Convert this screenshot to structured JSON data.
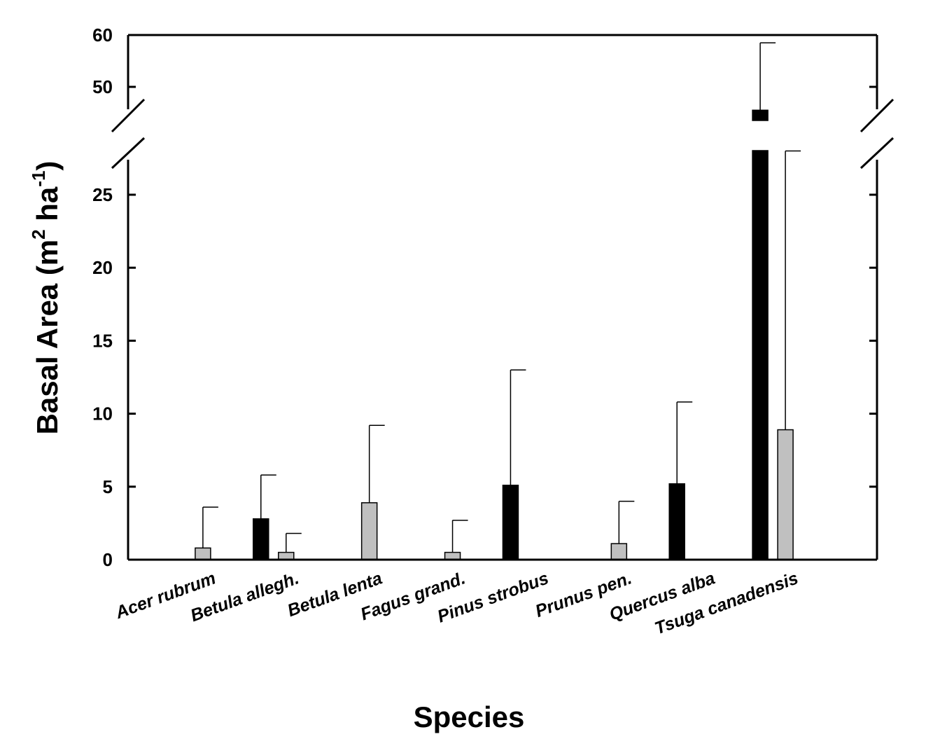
{
  "chart_data": {
    "type": "bar",
    "xlabel": "Species",
    "ylabel": {
      "main": "Basal Area (m",
      "sup1": "2",
      "mid": " ha",
      "sup2": "-1",
      "end": ")"
    },
    "axis_break": {
      "lower_max": 28,
      "upper_min": 43,
      "upper_max": 60
    },
    "y_ticks_lower": [
      0,
      5,
      10,
      15,
      20,
      25
    ],
    "y_ticks_upper": [
      50,
      60
    ],
    "categories": [
      "Acer rubrum",
      "Betula allegh.",
      "Betula lenta",
      "Fagus grand.",
      "Pinus strobus",
      "Prunus pen.",
      "Quercus alba",
      "Tsuga canadensis"
    ],
    "series": [
      {
        "name": "black",
        "color": "#000000",
        "values": [
          0,
          2.8,
          0,
          0,
          5.1,
          0,
          5.2,
          45.5
        ],
        "error_tops": [
          null,
          5.8,
          null,
          null,
          13.0,
          null,
          10.8,
          58.5
        ]
      },
      {
        "name": "gray",
        "color": "#c0c0c0",
        "values": [
          0.8,
          0.5,
          3.9,
          0.5,
          0,
          1.1,
          0,
          8.9
        ],
        "error_tops": [
          3.6,
          1.8,
          9.2,
          2.7,
          null,
          4.0,
          null,
          28.0
        ]
      }
    ]
  }
}
